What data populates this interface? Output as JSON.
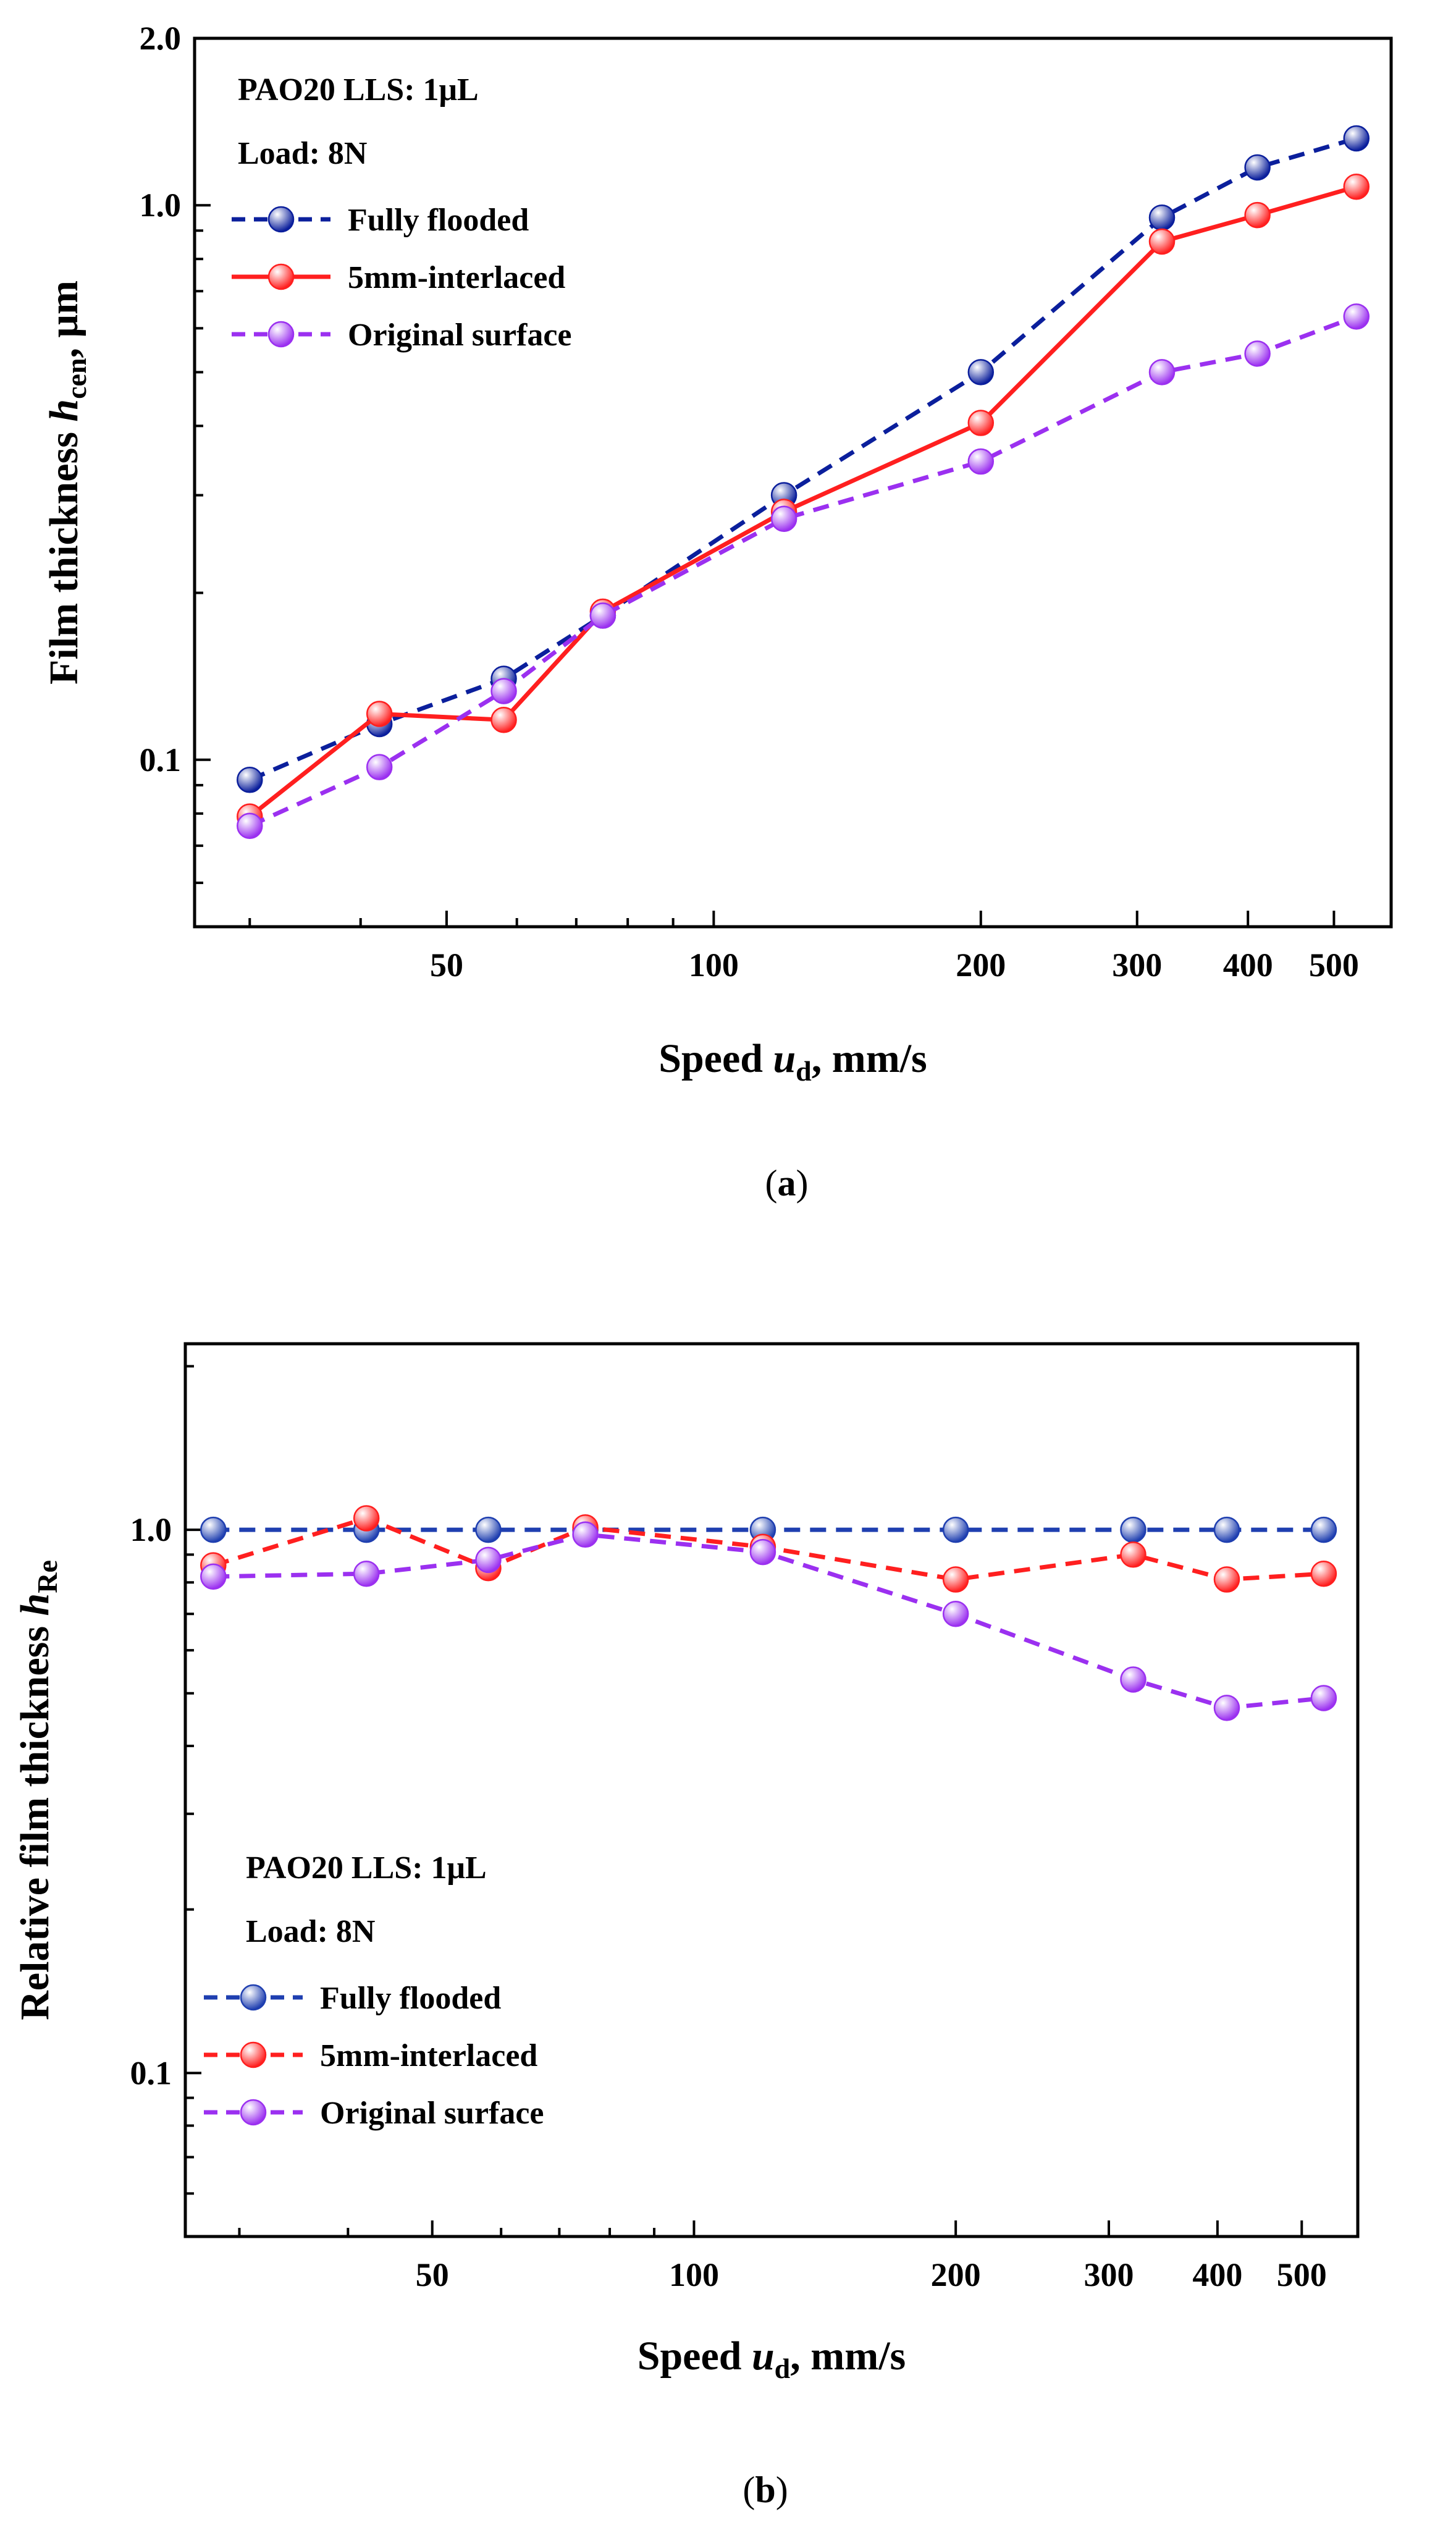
{
  "chart_data": [
    {
      "id": "a",
      "type": "line",
      "caption": "a",
      "xscale": "log",
      "yscale": "log",
      "xlim": [
        26,
        580
      ],
      "ylim": [
        0.05,
        2.0
      ],
      "xticks": [
        50,
        100,
        200,
        300,
        400,
        500
      ],
      "xtick_labels": [
        "50",
        "100",
        "200",
        "300",
        "400",
        "500"
      ],
      "yticks": [
        0.1,
        1.0,
        2.0
      ],
      "ytick_labels": [
        "0.1",
        "1.0",
        "2.0"
      ],
      "xlabel": {
        "main": "Speed ",
        "var": "u",
        "sub": "d",
        "rest": ", mm/s"
      },
      "ylabel": {
        "main": "Film thickness ",
        "var": "h",
        "sub": "cen",
        "rest": ", μm"
      },
      "notes": [
        "PAO20    LLS: 1μL",
        "Load:  8N"
      ],
      "series": [
        {
          "name": "Fully flooded",
          "color": "#0b1f9c",
          "style": "dashed",
          "x": [
            30,
            42,
            58,
            75,
            120,
            200,
            320,
            410,
            530
          ],
          "y": [
            0.092,
            0.116,
            0.14,
            0.182,
            0.3,
            0.5,
            0.95,
            1.17,
            1.32
          ]
        },
        {
          "name": "5mm-interlaced",
          "color": "#ff1f1f",
          "style": "solid",
          "x": [
            30,
            42,
            58,
            75,
            120,
            200,
            320,
            410,
            530
          ],
          "y": [
            0.079,
            0.121,
            0.118,
            0.185,
            0.28,
            0.405,
            0.86,
            0.96,
            1.08
          ]
        },
        {
          "name": "Original surface",
          "color": "#9b30f0",
          "style": "dashed",
          "x": [
            30,
            42,
            58,
            75,
            120,
            200,
            320,
            410,
            530
          ],
          "y": [
            0.076,
            0.097,
            0.133,
            0.182,
            0.272,
            0.345,
            0.5,
            0.54,
            0.63
          ]
        }
      ]
    },
    {
      "id": "b",
      "type": "line",
      "caption": "b",
      "xscale": "log",
      "yscale": "log",
      "xlim": [
        26,
        580
      ],
      "ylim": [
        0.05,
        2.2
      ],
      "xticks": [
        50,
        100,
        200,
        300,
        400,
        500
      ],
      "xtick_labels": [
        "50",
        "100",
        "200",
        "300",
        "400",
        "500"
      ],
      "yticks": [
        0.1,
        1.0
      ],
      "ytick_labels": [
        "0.1",
        "1.0"
      ],
      "xlabel": {
        "main": "Speed ",
        "var": "u",
        "sub": "d",
        "rest": ", mm/s"
      },
      "ylabel": {
        "main": "Relative film thickness ",
        "var": "h",
        "sub": "Re",
        "rest": ""
      },
      "notes": [
        "PAO20    LLS: 1μL",
        "Load:  8N"
      ],
      "series": [
        {
          "name": "Fully flooded",
          "color": "#1f3fb0",
          "style": "dashed",
          "x": [
            28,
            42,
            58,
            75,
            120,
            200,
            320,
            410,
            530
          ],
          "y": [
            1.0,
            1.0,
            1.0,
            1.0,
            1.0,
            1.0,
            1.0,
            1.0,
            1.0
          ]
        },
        {
          "name": "5mm-interlaced",
          "color": "#ff1f1f",
          "style": "dashed",
          "x": [
            28,
            42,
            58,
            75,
            120,
            200,
            320,
            410,
            530
          ],
          "y": [
            0.86,
            1.05,
            0.85,
            1.01,
            0.93,
            0.81,
            0.9,
            0.81,
            0.83
          ]
        },
        {
          "name": "Original surface",
          "color": "#9b30f0",
          "style": "dashed",
          "x": [
            28,
            42,
            58,
            75,
            120,
            200,
            320,
            410,
            530
          ],
          "y": [
            0.82,
            0.83,
            0.88,
            0.98,
            0.91,
            0.7,
            0.53,
            0.47,
            0.49
          ]
        }
      ]
    }
  ]
}
